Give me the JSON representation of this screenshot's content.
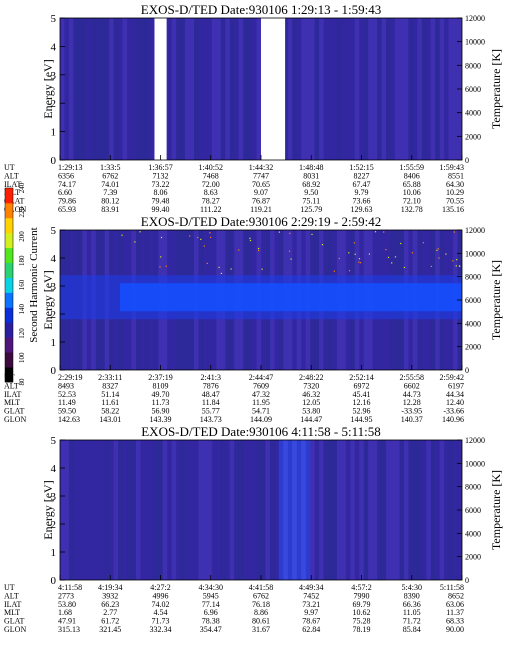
{
  "colorbar": {
    "label": "Second Harmonic Current",
    "ticks": [
      "80",
      "100",
      "120",
      "140",
      "160",
      "180",
      "200",
      "220",
      "240"
    ],
    "colors": [
      "#000000",
      "#3c0a3c",
      "#50157a",
      "#2a1fa0",
      "#0a2ed8",
      "#0a73ff",
      "#0ad2e6",
      "#2ad272",
      "#52e61e",
      "#d2f01e",
      "#ffd200",
      "#ff8200",
      "#ff1e00"
    ]
  },
  "chart_data": [
    {
      "type": "heatmap",
      "title": "EXOS-D/TED   Date:930106   1:29:13 - 1:59:43",
      "ylabel": "Energy [eV]",
      "y2label": "Temperature [K]",
      "ylim": [
        0,
        5
      ],
      "y2lim": [
        0,
        12000
      ],
      "yticks": [
        "0",
        "1",
        "2",
        "3",
        "4",
        "5"
      ],
      "y2ticks": [
        "0",
        "2000",
        "4000",
        "6000",
        "8000",
        "10000",
        "12000"
      ],
      "row_labels": [
        "UT",
        "ALT",
        "ILAT",
        "MLT",
        "GLAT",
        "GLON"
      ],
      "columns": [
        [
          "1:29:13",
          "6356",
          "74.17",
          "6.60",
          "79.86",
          "65.93"
        ],
        [
          "1:33:5",
          "6762",
          "74.01",
          "7.39",
          "80.12",
          "83.91"
        ],
        [
          "1:36:57",
          "7132",
          "73.22",
          "8.06",
          "79.48",
          "99.40"
        ],
        [
          "1:40:52",
          "7468",
          "72.00",
          "8.63",
          "78.27",
          "111.22"
        ],
        [
          "1:44:32",
          "7747",
          "70.65",
          "9.07",
          "76.87",
          "119.21"
        ],
        [
          "1:48:48",
          "8031",
          "68.92",
          "9.50",
          "75.11",
          "125.79"
        ],
        [
          "1:52:15",
          "8227",
          "67.47",
          "9.79",
          "73.66",
          "129.63"
        ],
        [
          "1:55:59",
          "8406",
          "65.88",
          "10.06",
          "72.10",
          "132.78"
        ],
        [
          "1:59:43",
          "8551",
          "64.30",
          "10.29",
          "70.55",
          "135.16"
        ]
      ],
      "gaps": [
        [
          0.235,
          0.265
        ],
        [
          0.5,
          0.56
        ]
      ]
    },
    {
      "type": "heatmap",
      "title": "EXOS-D/TED   Date:930106   2:29:19 - 2:59:42",
      "ylabel": "Energy [eV]",
      "y2label": "Temperature [K]",
      "ylim": [
        0,
        5
      ],
      "y2lim": [
        0,
        12000
      ],
      "yticks": [
        "0",
        "1",
        "2",
        "3",
        "4",
        "5"
      ],
      "y2ticks": [
        "0",
        "2000",
        "4000",
        "6000",
        "8000",
        "10000",
        "12000"
      ],
      "row_labels": [
        "UT",
        "ALT",
        "ILAT",
        "MLT",
        "GLAT",
        "GLON"
      ],
      "columns": [
        [
          "2:29:19",
          "8493",
          "52.53",
          "11.49",
          "59.50",
          "142.63"
        ],
        [
          "2:33:11",
          "8327",
          "51.14",
          "11.61",
          "58.22",
          "143.01"
        ],
        [
          "2:37:19",
          "8109",
          "49.70",
          "11.73",
          "56.90",
          "143.39"
        ],
        [
          "2:41:3",
          "7876",
          "48.47",
          "11.84",
          "55.77",
          "143.73"
        ],
        [
          "2:44:47",
          "7609",
          "47.32",
          "11.95",
          "54.71",
          "144.09"
        ],
        [
          "2:48:22",
          "7320",
          "46.32",
          "12.05",
          "53.80",
          "144.47"
        ],
        [
          "2:52:14",
          "6972",
          "45.41",
          "12.16",
          "52.96",
          "144.95"
        ],
        [
          "2:55:58",
          "6602",
          "44.73",
          "12.28",
          "-33.95",
          "140.37"
        ],
        [
          "2:59:42",
          "6197",
          "44.34",
          "12.40",
          "-33.66",
          "140.96"
        ]
      ],
      "band_energy": 2.6
    },
    {
      "type": "heatmap",
      "title": "EXOS-D/TED   Date:930106   4:11:58 - 5:11:58",
      "ylabel": "Energy [eV]",
      "y2label": "Temperature [K]",
      "ylim": [
        0,
        5
      ],
      "y2lim": [
        0,
        12000
      ],
      "yticks": [
        "0",
        "1",
        "2",
        "3",
        "4",
        "5"
      ],
      "y2ticks": [
        "0",
        "2000",
        "4000",
        "6000",
        "8000",
        "10000",
        "12000"
      ],
      "row_labels": [
        "UT",
        "ALT",
        "ILAT",
        "MLT",
        "GLAT",
        "GLON"
      ],
      "columns": [
        [
          "4:11:58",
          "2773",
          "53.80",
          "1.68",
          "47.91",
          "315.13"
        ],
        [
          "4:19:34",
          "3932",
          "66.23",
          "2.77",
          "61.72",
          "321.45"
        ],
        [
          "4:27:2",
          "4996",
          "74.02",
          "4.54",
          "71.73",
          "332.34"
        ],
        [
          "4:34:30",
          "5945",
          "77.14",
          "6.96",
          "78.38",
          "354.47"
        ],
        [
          "4:41:58",
          "6762",
          "76.18",
          "8.86",
          "80.61",
          "31.67"
        ],
        [
          "4:49:34",
          "7452",
          "73.21",
          "9.97",
          "78.67",
          "62.84"
        ],
        [
          "4:57:2",
          "7990",
          "69.79",
          "10.62",
          "75.28",
          "78.19"
        ],
        [
          "5:4:30",
          "8390",
          "66.36",
          "11.05",
          "71.72",
          "85.84"
        ],
        [
          "5:11:58",
          "8652",
          "63.06",
          "11.37",
          "68.33",
          "90.00"
        ]
      ]
    }
  ]
}
